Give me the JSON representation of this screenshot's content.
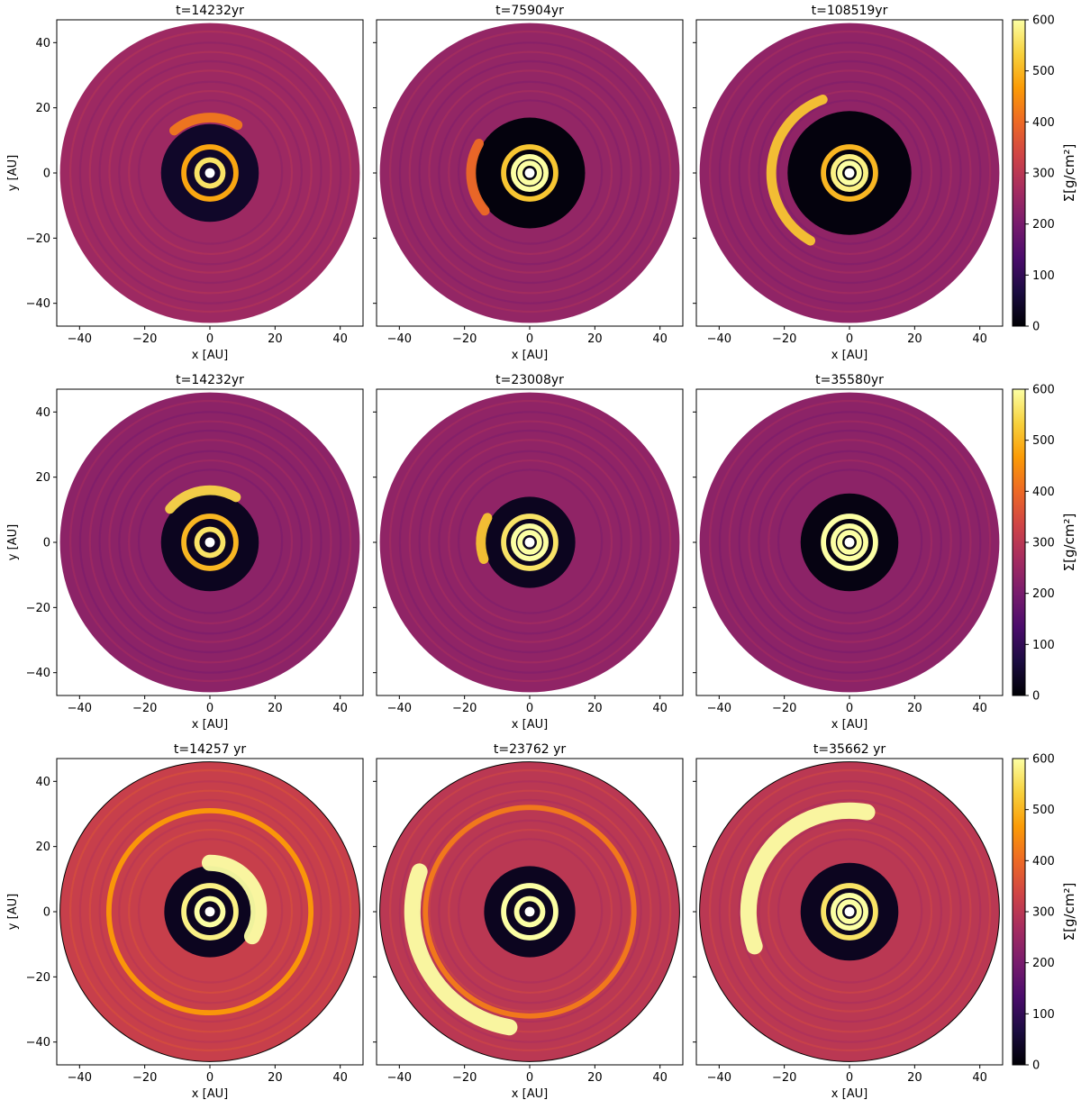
{
  "figure": {
    "xlabel": "x [AU]",
    "ylabel": "y [AU]",
    "colorbar_label": "Σ[g/cm²]"
  },
  "colormap": {
    "name": "inferno",
    "stops": [
      "#000004",
      "#1b0c41",
      "#4a0c6b",
      "#781c6d",
      "#a52c60",
      "#cf4446",
      "#ed6925",
      "#fb9b06",
      "#f7d13d",
      "#fcffa4"
    ]
  },
  "chart_data": [
    {
      "type": "heatmap",
      "row": 0,
      "col": 0,
      "title": "t=14232yr",
      "xlabel": "x [AU]",
      "ylabel": "y [AU]",
      "xlim": [
        -47,
        47
      ],
      "ylim": [
        -47,
        47
      ],
      "xticks": [
        -40,
        -20,
        0,
        20,
        40
      ],
      "yticks": [
        -40,
        -20,
        0,
        20,
        40
      ],
      "disk_radius": 46,
      "background_density": 255,
      "inner_cavity_radius": 15,
      "cavity_density": 40,
      "bright_rings": [
        {
          "r": 4,
          "sigma": 560
        },
        {
          "r": 8,
          "sigma": 480
        }
      ],
      "arc": {
        "r": 17,
        "angle_start": 60,
        "angle_end": 130,
        "sigma": 420
      },
      "grid": false
    },
    {
      "type": "heatmap",
      "row": 0,
      "col": 1,
      "title": "t=75904yr",
      "xlabel": "x [AU]",
      "ylabel": "",
      "xlim": [
        -47,
        47
      ],
      "ylim": [
        -47,
        47
      ],
      "xticks": [
        -40,
        -20,
        0,
        20,
        40
      ],
      "disk_radius": 46,
      "background_density": 240,
      "inner_cavity_radius": 17,
      "cavity_density": 10,
      "bright_rings": [
        {
          "r": 3,
          "sigma": 600
        },
        {
          "r": 5,
          "sigma": 600
        },
        {
          "r": 8,
          "sigma": 520
        }
      ],
      "arc": {
        "r": 18,
        "angle_start": 150,
        "angle_end": 220,
        "sigma": 400
      },
      "grid": false
    },
    {
      "type": "heatmap",
      "row": 0,
      "col": 2,
      "title": "t=108519yr",
      "xlabel": "x [AU]",
      "ylabel": "",
      "xlim": [
        -47,
        47
      ],
      "ylim": [
        -47,
        47
      ],
      "xticks": [
        -40,
        -20,
        0,
        20,
        40
      ],
      "disk_radius": 46,
      "background_density": 235,
      "inner_cavity_radius": 19,
      "cavity_density": 10,
      "bright_rings": [
        {
          "r": 3,
          "sigma": 600
        },
        {
          "r": 5,
          "sigma": 580
        },
        {
          "r": 8,
          "sigma": 500
        }
      ],
      "arc": {
        "r": 24,
        "angle_start": 110,
        "angle_end": 240,
        "sigma": 520
      },
      "grid": false
    },
    {
      "type": "heatmap",
      "row": 1,
      "col": 0,
      "title": "t=14232yr",
      "xlabel": "x [AU]",
      "ylabel": "y [AU]",
      "xlim": [
        -47,
        47
      ],
      "ylim": [
        -47,
        47
      ],
      "xticks": [
        -40,
        -20,
        0,
        20,
        40
      ],
      "yticks": [
        -40,
        -20,
        0,
        20,
        40
      ],
      "disk_radius": 46,
      "background_density": 230,
      "inner_cavity_radius": 15,
      "cavity_density": 30,
      "bright_rings": [
        {
          "r": 4,
          "sigma": 560
        },
        {
          "r": 8,
          "sigma": 500
        }
      ],
      "arc": {
        "r": 16,
        "angle_start": 60,
        "angle_end": 140,
        "sigma": 540
      },
      "grid": false
    },
    {
      "type": "heatmap",
      "row": 1,
      "col": 1,
      "title": "t=23008yr",
      "xlabel": "x [AU]",
      "ylabel": "",
      "xlim": [
        -47,
        47
      ],
      "ylim": [
        -47,
        47
      ],
      "xticks": [
        -40,
        -20,
        0,
        20,
        40
      ],
      "disk_radius": 46,
      "background_density": 235,
      "inner_cavity_radius": 14,
      "cavity_density": 30,
      "bright_rings": [
        {
          "r": 3,
          "sigma": 600
        },
        {
          "r": 5,
          "sigma": 600
        },
        {
          "r": 8,
          "sigma": 560
        }
      ],
      "arc": {
        "r": 15,
        "angle_start": 150,
        "angle_end": 200,
        "sigma": 520
      },
      "grid": false
    },
    {
      "type": "heatmap",
      "row": 1,
      "col": 2,
      "title": "t=35580yr",
      "xlabel": "x [AU]",
      "ylabel": "",
      "xlim": [
        -47,
        47
      ],
      "ylim": [
        -47,
        47
      ],
      "xticks": [
        -40,
        -20,
        0,
        20,
        40
      ],
      "disk_radius": 46,
      "background_density": 230,
      "inner_cavity_radius": 15,
      "cavity_density": 15,
      "bright_rings": [
        {
          "r": 3,
          "sigma": 600
        },
        {
          "r": 5,
          "sigma": 600
        },
        {
          "r": 8,
          "sigma": 600
        }
      ],
      "arc": null,
      "grid": false
    },
    {
      "type": "heatmap",
      "row": 2,
      "col": 0,
      "title": "t=14257 yr",
      "xlabel": "x [AU]",
      "ylabel": "y [AU]",
      "xlim": [
        -47,
        47
      ],
      "ylim": [
        -47,
        47
      ],
      "xticks": [
        -40,
        -20,
        0,
        20,
        40
      ],
      "yticks": [
        -40,
        -20,
        0,
        20,
        40
      ],
      "disk_radius": 46,
      "background_density": 320,
      "inner_cavity_radius": 14,
      "cavity_density": 30,
      "bright_rings": [
        {
          "r": 4,
          "sigma": 600
        },
        {
          "r": 8,
          "sigma": 580
        },
        {
          "r": 31,
          "sigma": 460
        }
      ],
      "arc": {
        "r": 15,
        "angle_start": -30,
        "angle_end": 90,
        "sigma": 600
      },
      "grid": false
    },
    {
      "type": "heatmap",
      "row": 2,
      "col": 1,
      "title": "t=23762 yr",
      "xlabel": "x [AU]",
      "ylabel": "",
      "xlim": [
        -47,
        47
      ],
      "ylim": [
        -47,
        47
      ],
      "xticks": [
        -40,
        -20,
        0,
        20,
        40
      ],
      "disk_radius": 46,
      "background_density": 300,
      "inner_cavity_radius": 14,
      "cavity_density": 30,
      "bright_rings": [
        {
          "r": 4,
          "sigma": 600
        },
        {
          "r": 8,
          "sigma": 600
        },
        {
          "r": 32,
          "sigma": 420
        }
      ],
      "arc": {
        "r": 36,
        "angle_start": 160,
        "angle_end": 260,
        "sigma": 600
      },
      "grid": false
    },
    {
      "type": "heatmap",
      "row": 2,
      "col": 2,
      "title": "t=35662 yr",
      "xlabel": "x [AU]",
      "ylabel": "",
      "xlim": [
        -47,
        47
      ],
      "ylim": [
        -47,
        47
      ],
      "xticks": [
        -40,
        -20,
        0,
        20,
        40
      ],
      "disk_radius": 46,
      "background_density": 300,
      "inner_cavity_radius": 15,
      "cavity_density": 30,
      "bright_rings": [
        {
          "r": 3,
          "sigma": 600
        },
        {
          "r": 5,
          "sigma": 600
        },
        {
          "r": 8,
          "sigma": 560
        }
      ],
      "arc": {
        "r": 31,
        "angle_start": 80,
        "angle_end": 200,
        "sigma": 600
      },
      "grid": false
    }
  ],
  "colorbars": [
    {
      "row": 0,
      "label": "Σ[g/cm²]",
      "vmin": 0,
      "vmax": 600,
      "ticks": [
        0,
        100,
        200,
        300,
        400,
        500,
        600
      ]
    },
    {
      "row": 1,
      "label": "Σ[g/cm²]",
      "vmin": 0,
      "vmax": 600,
      "ticks": [
        0,
        100,
        200,
        300,
        400,
        500,
        600
      ]
    },
    {
      "row": 2,
      "label": "Σ[g/cm²]",
      "vmin": 0,
      "vmax": 600,
      "ticks": [
        0,
        100,
        200,
        300,
        400,
        500,
        600
      ]
    }
  ]
}
